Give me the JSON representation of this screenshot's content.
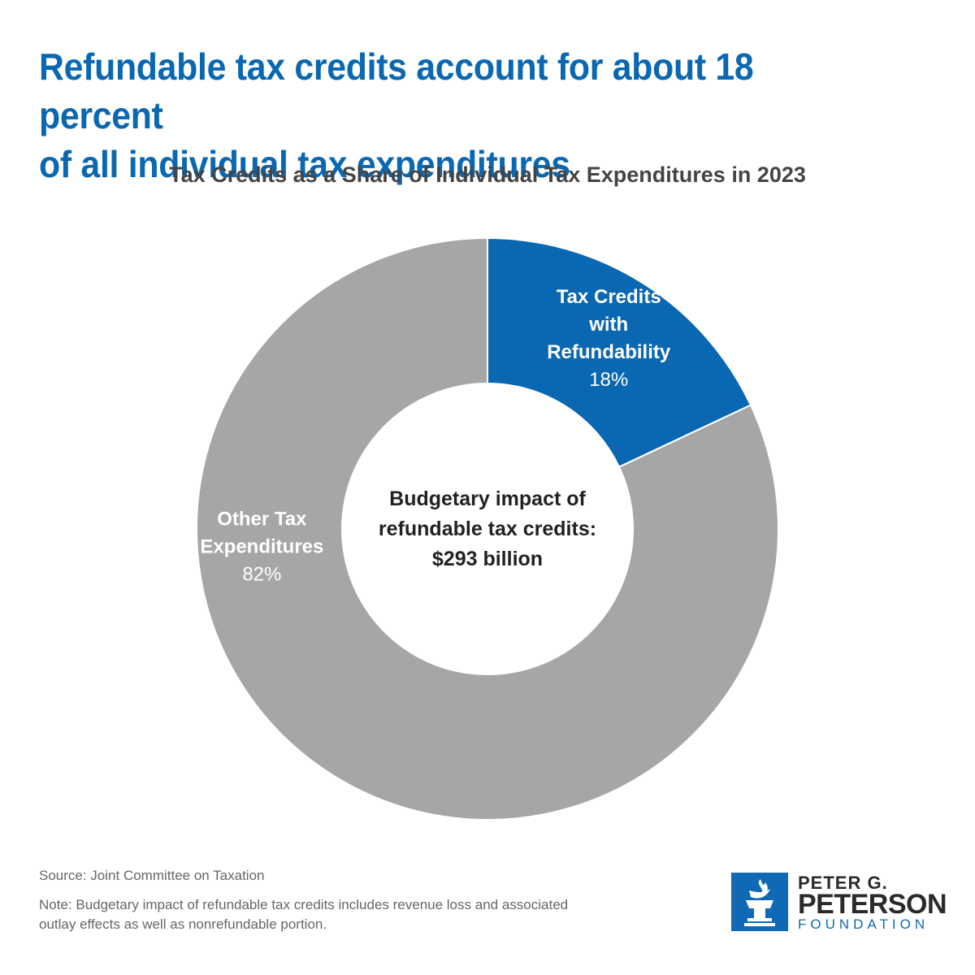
{
  "headline": {
    "line1": "Refundable tax credits account for about 18 percent",
    "line2": "of all individual tax expenditures"
  },
  "chart_data": {
    "type": "pie",
    "variant": "donut",
    "title": "Tax Credits as a Share of Individual Tax Expenditures in 2023",
    "slices": [
      {
        "name": "Tax Credits with Refundability",
        "label_lines": [
          "Tax Credits",
          "with",
          "Refundability"
        ],
        "value": 18,
        "value_label": "18%",
        "color": "#0a67b1"
      },
      {
        "name": "Other Tax Expenditures",
        "label_lines": [
          "Other Tax",
          "Expenditures"
        ],
        "value": 82,
        "value_label": "82%",
        "color": "#a6a6a6"
      }
    ],
    "center_text": [
      "Budgetary impact of",
      "refundable tax credits:",
      "$293 billion"
    ]
  },
  "footer": {
    "source": "Source: Joint Committee on Taxation",
    "note_line1": "Note: Budgetary impact of refundable tax credits includes revenue loss and associated",
    "note_line2": "outlay effects as well as nonrefundable portion."
  },
  "logo": {
    "line1": "PETER G.",
    "line2": "PETERSON",
    "line3": "FOUNDATION",
    "icon": "torch-icon",
    "color": "#1069b4"
  }
}
